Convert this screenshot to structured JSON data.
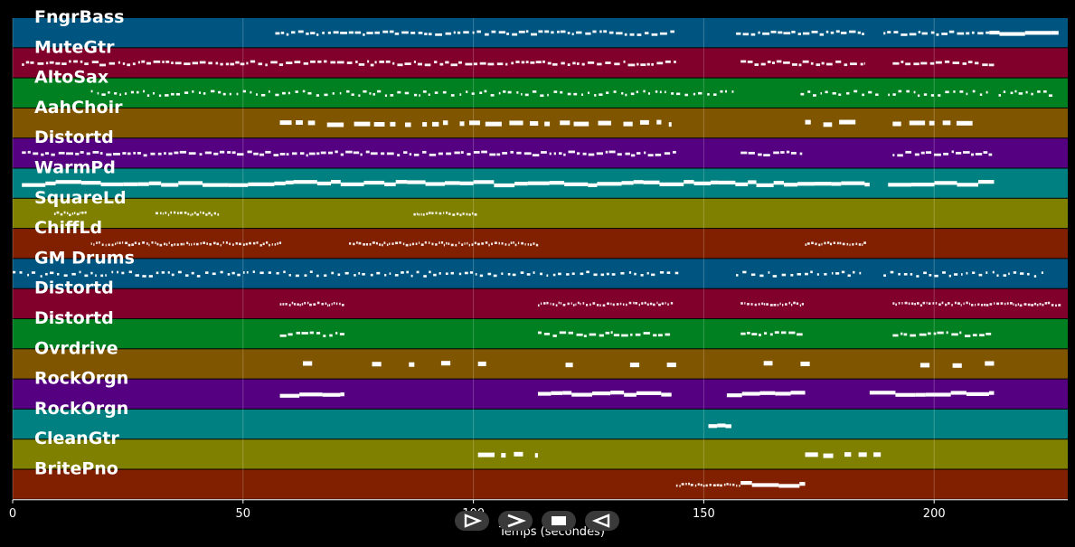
{
  "x_axis": {
    "label": "Temps (secondes)",
    "min": 0,
    "max": 229,
    "ticks": [
      0,
      50,
      100,
      150,
      200
    ],
    "tick_labels": [
      "0",
      "50",
      "100",
      "150",
      "200"
    ]
  },
  "grid": true,
  "tracks": [
    {
      "name": "FngrBass",
      "color": "#005580",
      "segments": [
        {
          "start": 57,
          "end": 144,
          "style": "dash"
        },
        {
          "start": 157,
          "end": 185,
          "style": "dash"
        },
        {
          "start": 189,
          "end": 212,
          "style": "dash"
        },
        {
          "start": 212,
          "end": 227,
          "style": "bar"
        }
      ]
    },
    {
      "name": "MuteGtr",
      "color": "#80002b",
      "segments": [
        {
          "start": 2,
          "end": 144,
          "style": "dash"
        },
        {
          "start": 158,
          "end": 185,
          "style": "dash"
        },
        {
          "start": 191,
          "end": 213,
          "style": "dash"
        }
      ]
    },
    {
      "name": "AltoSax",
      "color": "#008020",
      "segments": [
        {
          "start": 17,
          "end": 157,
          "style": "sparse"
        },
        {
          "start": 171,
          "end": 189,
          "style": "sparse"
        },
        {
          "start": 190,
          "end": 212,
          "style": "sparse"
        },
        {
          "start": 214,
          "end": 225,
          "style": "sparse"
        }
      ]
    },
    {
      "name": "AahChoir",
      "color": "#805500",
      "segments": [
        {
          "start": 58,
          "end": 143,
          "style": "blocks"
        },
        {
          "start": 172,
          "end": 184,
          "style": "blocks"
        },
        {
          "start": 191,
          "end": 210,
          "style": "blocks"
        }
      ]
    },
    {
      "name": "Distortd",
      "color": "#550080",
      "segments": [
        {
          "start": 2,
          "end": 144,
          "style": "dash"
        },
        {
          "start": 158,
          "end": 172,
          "style": "dash"
        },
        {
          "start": 191,
          "end": 213,
          "style": "dash"
        }
      ]
    },
    {
      "name": "WarmPd",
      "color": "#008080",
      "segments": [
        {
          "start": 2,
          "end": 186,
          "style": "bar"
        },
        {
          "start": 190,
          "end": 213,
          "style": "bar"
        }
      ]
    },
    {
      "name": "SquareLd",
      "color": "#808000",
      "segments": [
        {
          "start": 9,
          "end": 16,
          "style": "fine"
        },
        {
          "start": 31,
          "end": 45,
          "style": "fine"
        },
        {
          "start": 87,
          "end": 101,
          "style": "fine"
        }
      ]
    },
    {
      "name": "ChiffLd",
      "color": "#802000",
      "segments": [
        {
          "start": 17,
          "end": 58,
          "style": "fine"
        },
        {
          "start": 73,
          "end": 114,
          "style": "fine"
        },
        {
          "start": 172,
          "end": 185,
          "style": "fine"
        }
      ]
    },
    {
      "name": "GM Drums",
      "color": "#005580",
      "segments": [
        {
          "start": 0,
          "end": 144,
          "style": "sparse"
        },
        {
          "start": 157,
          "end": 185,
          "style": "sparse"
        },
        {
          "start": 189,
          "end": 224,
          "style": "sparse"
        }
      ]
    },
    {
      "name": "Distortd",
      "color": "#80002b",
      "segments": [
        {
          "start": 58,
          "end": 72,
          "style": "fine"
        },
        {
          "start": 114,
          "end": 143,
          "style": "fine"
        },
        {
          "start": 158,
          "end": 172,
          "style": "fine"
        },
        {
          "start": 191,
          "end": 227,
          "style": "fine"
        }
      ]
    },
    {
      "name": "Distortd",
      "color": "#008020",
      "segments": [
        {
          "start": 58,
          "end": 72,
          "style": "dash"
        },
        {
          "start": 114,
          "end": 143,
          "style": "dash"
        },
        {
          "start": 158,
          "end": 172,
          "style": "dash"
        },
        {
          "start": 191,
          "end": 213,
          "style": "dash"
        }
      ]
    },
    {
      "name": "Ovrdrive",
      "color": "#805500",
      "segments": [
        {
          "start": 63,
          "end": 65,
          "style": "blocks"
        },
        {
          "start": 78,
          "end": 80,
          "style": "blocks"
        },
        {
          "start": 86,
          "end": 88,
          "style": "blocks"
        },
        {
          "start": 93,
          "end": 95,
          "style": "blocks"
        },
        {
          "start": 101,
          "end": 103,
          "style": "blocks"
        },
        {
          "start": 120,
          "end": 122,
          "style": "blocks"
        },
        {
          "start": 134,
          "end": 136,
          "style": "blocks"
        },
        {
          "start": 142,
          "end": 144,
          "style": "blocks"
        },
        {
          "start": 163,
          "end": 165,
          "style": "blocks"
        },
        {
          "start": 171,
          "end": 173,
          "style": "blocks"
        },
        {
          "start": 197,
          "end": 199,
          "style": "blocks"
        },
        {
          "start": 204,
          "end": 206,
          "style": "blocks"
        },
        {
          "start": 211,
          "end": 213,
          "style": "blocks"
        }
      ]
    },
    {
      "name": "RockOrgn",
      "color": "#550080",
      "segments": [
        {
          "start": 58,
          "end": 72,
          "style": "bar"
        },
        {
          "start": 114,
          "end": 143,
          "style": "bar"
        },
        {
          "start": 155,
          "end": 172,
          "style": "bar"
        },
        {
          "start": 186,
          "end": 213,
          "style": "bar"
        }
      ]
    },
    {
      "name": "RockOrgn",
      "color": "#008080",
      "segments": [
        {
          "start": 151,
          "end": 156,
          "style": "bar"
        }
      ]
    },
    {
      "name": "CleanGtr",
      "color": "#808000",
      "segments": [
        {
          "start": 101,
          "end": 114,
          "style": "blocks"
        },
        {
          "start": 172,
          "end": 190,
          "style": "blocks"
        }
      ]
    },
    {
      "name": "BritePno",
      "color": "#802000",
      "segments": [
        {
          "start": 144,
          "end": 158,
          "style": "fine"
        },
        {
          "start": 158,
          "end": 172,
          "style": "bar"
        }
      ]
    }
  ],
  "controls": [
    {
      "name": "play-icon",
      "glyph": "play"
    },
    {
      "name": "fast-forward-icon",
      "glyph": "forward"
    },
    {
      "name": "stop-icon",
      "glyph": "stop"
    },
    {
      "name": "rewind-icon",
      "glyph": "back"
    }
  ]
}
